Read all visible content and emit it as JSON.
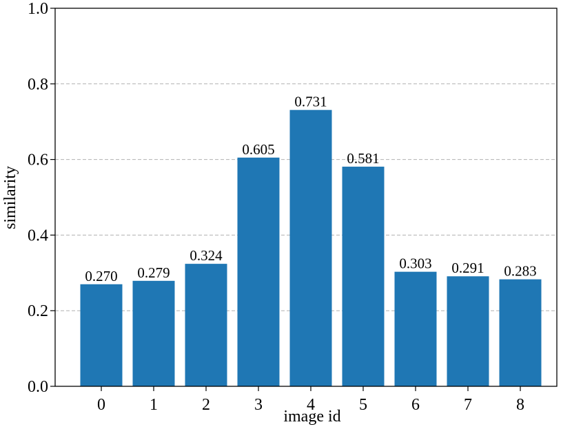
{
  "chart_data": {
    "type": "bar",
    "categories": [
      "0",
      "1",
      "2",
      "3",
      "4",
      "5",
      "6",
      "7",
      "8"
    ],
    "values": [
      0.27,
      0.279,
      0.324,
      0.605,
      0.731,
      0.581,
      0.303,
      0.291,
      0.283
    ],
    "data_labels": [
      "0.270",
      "0.279",
      "0.324",
      "0.605",
      "0.731",
      "0.581",
      "0.303",
      "0.291",
      "0.283"
    ],
    "xlabel": "image id",
    "ylabel": "similarity",
    "ylim": [
      0.0,
      1.0
    ],
    "yticks": [
      "0.0",
      "0.2",
      "0.4",
      "0.6",
      "0.8",
      "1.0"
    ],
    "grid": "horizontal dashed",
    "bar_color": "#1f77b4",
    "grid_color": "#b0b0b0"
  }
}
